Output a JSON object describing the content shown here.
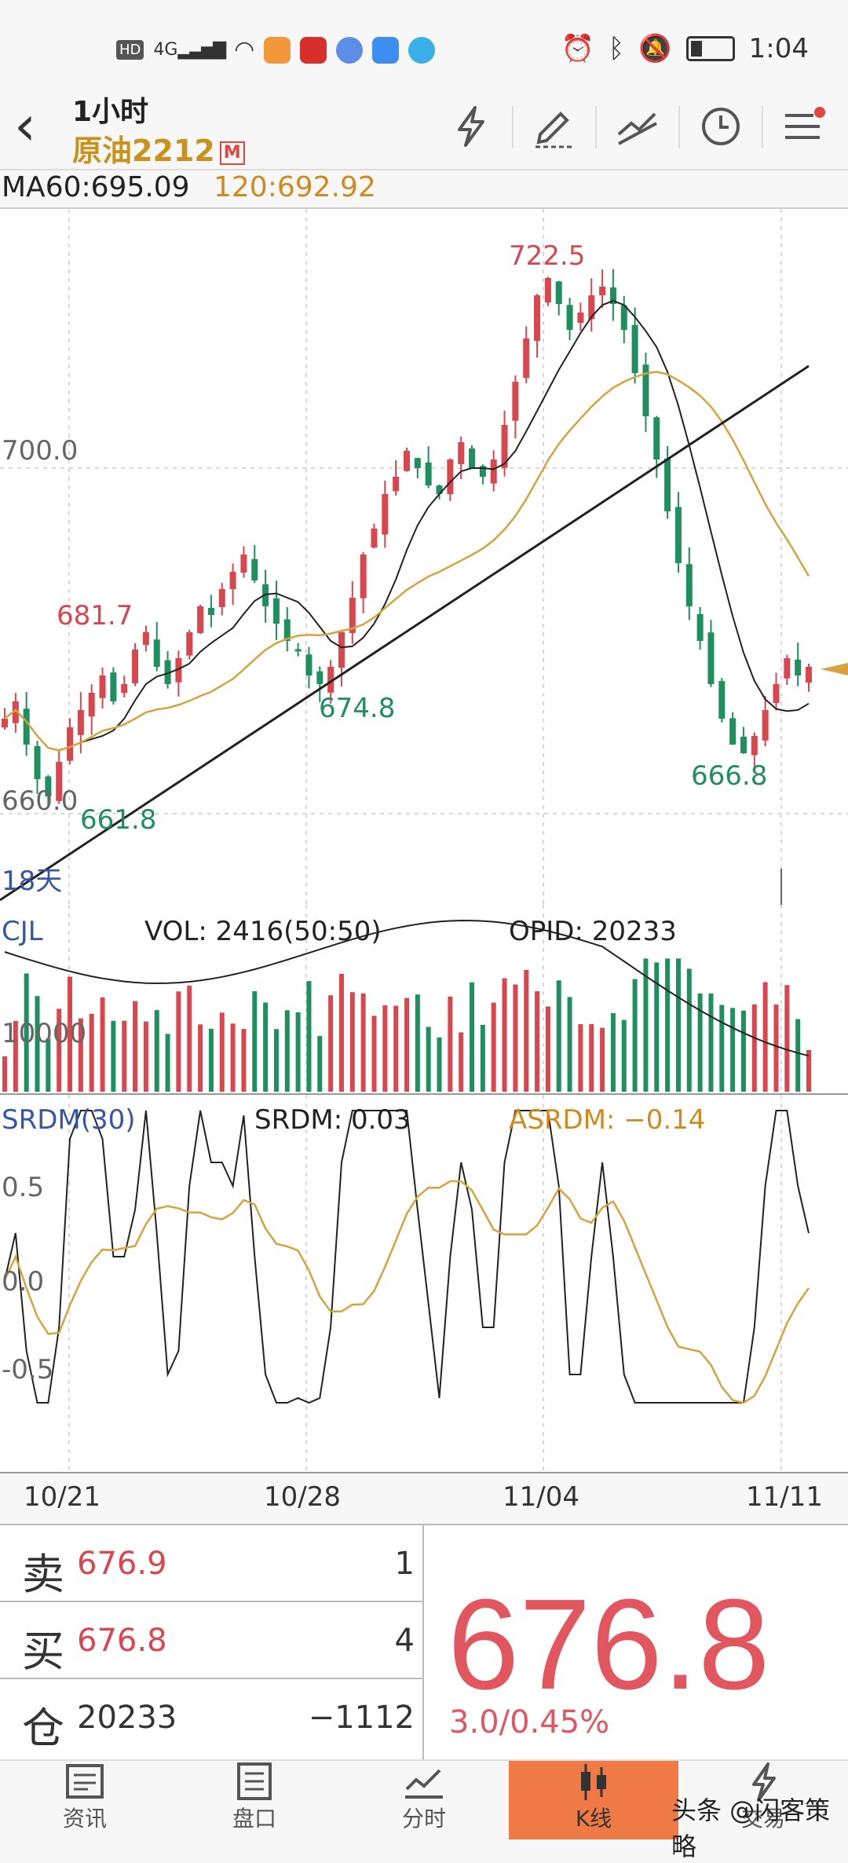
{
  "status_bar": {
    "left_icons": [
      "hd-icon",
      "4g-signal-icon",
      "wifi-icon",
      "video-app-icon",
      "study-app-icon",
      "music-app-icon",
      "weather-app-icon",
      "chat-app-icon"
    ],
    "hd": "HD",
    "net": "4G",
    "time": "1:04"
  },
  "header": {
    "period": "1小时",
    "symbol": "原油2212",
    "badge": "M"
  },
  "ma": {
    "ma60": "MA60:695.09",
    "ma120": "120:692.92"
  },
  "main_chart": {
    "axis_labels": [
      "700.0",
      "660.0"
    ],
    "annotations": {
      "high": "722.5",
      "p681": "681.7",
      "p674": "674.8",
      "p661": "661.8",
      "p666": "666.8"
    },
    "days": "18天"
  },
  "volume_panel": {
    "name": "CJL",
    "vol": "VOL: 2416(50:50)",
    "opid": "OPID: 20233",
    "axis": "10000"
  },
  "srdm_panel": {
    "name": "SRDM(30)",
    "srdm": "SRDM: 0.03",
    "asrdm": "ASRDM: −0.14",
    "axis": [
      "0.5",
      "0.0",
      "-0.5"
    ]
  },
  "x_axis": [
    "10/21",
    "10/28",
    "11/04",
    "11/11"
  ],
  "quote": {
    "sell_label": "卖",
    "sell_price": "676.9",
    "sell_qty": "1",
    "buy_label": "买",
    "buy_price": "676.8",
    "buy_qty": "4",
    "oi_label": "仓",
    "oi_value": "20233",
    "oi_change": "−1112",
    "last": "676.8",
    "change": "3.0/0.45%"
  },
  "nav": [
    {
      "label": "资讯",
      "icon": "news-icon"
    },
    {
      "label": "盘口",
      "icon": "orderbook-icon"
    },
    {
      "label": "分时",
      "icon": "timeshare-icon"
    },
    {
      "label": "K线",
      "icon": "kline-icon",
      "active": true
    },
    {
      "label": "交易",
      "icon": "trade-icon"
    }
  ],
  "watermark": "头条 @闪客策略",
  "colors": {
    "up": "#d9464e",
    "down": "#1f8f5f",
    "ma_gold": "#d8a23c",
    "accent": "#f07a45"
  },
  "chart_data": {
    "type": "candlestick",
    "title": "原油2212 1小时",
    "x_ticks": [
      "10/21",
      "10/28",
      "11/04",
      "11/11"
    ],
    "y_ticks": [
      700.0,
      660.0
    ],
    "annotated_prices": {
      "high": 722.5,
      "lows": [
        661.8,
        666.8
      ],
      "local": [
        681.7,
        674.8
      ]
    },
    "close_series": [
      671,
      673,
      668,
      664,
      662,
      666,
      670,
      672,
      674,
      676,
      673,
      675,
      679,
      681,
      677,
      675,
      678,
      681,
      684,
      683,
      686,
      688,
      690,
      687,
      684,
      682,
      680,
      679,
      676,
      675,
      677,
      681,
      685,
      690,
      693,
      697,
      699,
      702,
      700,
      698,
      697,
      701,
      703,
      700,
      699,
      701,
      705,
      710,
      715,
      720,
      722,
      719,
      716,
      718,
      720,
      721,
      719,
      716,
      711,
      706,
      701,
      695,
      689,
      684,
      680,
      675,
      671,
      668,
      667,
      669,
      672,
      675,
      678,
      676,
      677
    ],
    "ma60_last": 695.09,
    "ma120_last": 692.92,
    "last_price": 676.8
  }
}
